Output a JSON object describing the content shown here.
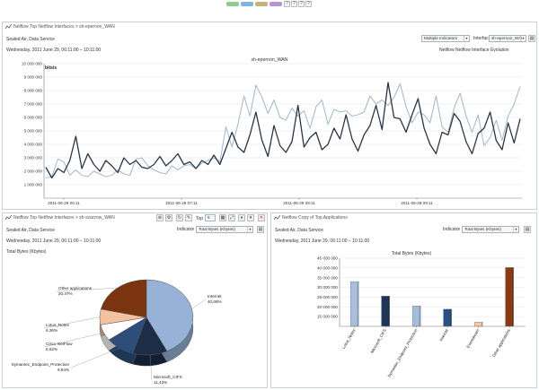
{
  "top": {
    "pills": [
      "#8ccf8c",
      "#7fb4e0",
      "#c7b27a",
      "#b891d6"
    ],
    "toolbar_icons": [
      "?",
      "?",
      "?",
      "?"
    ]
  },
  "panel1": {
    "breadcrumb": "Netflow Top Netflow Interfaces  >  sh-epernon_WAN",
    "org": "Sealed Air, Data Service",
    "period": "Wednesday, 2011 June 29, 06:11:00 – 10:11:00",
    "indicators_select": "Multiple Indicators",
    "interface_label": "Interface",
    "interface_select": "sh-epernon_WAI",
    "evolution_title": "Netflow Netflow Interface Evolution",
    "chart_title": "sh-epernon_WAN",
    "y_unit": "bits/s"
  },
  "panel2": {
    "breadcrumb": "Netflow Top Netflow Interfaces  >  sh-szarzow_WAN",
    "org": "Sealed Air, Data Service",
    "period": "Wednesday, 2011 June 29, 06:11:00 – 10:11:00",
    "indicator_label": "Indicator",
    "indicator_select": "Total Bytes (Kbytes)",
    "top_label": "Top",
    "top_value": "5",
    "section_title": "Total Bytes (Kbytes)"
  },
  "panel3": {
    "breadcrumb": "Netflow Copy of Top Applications",
    "org": "Sealed Air, Data Service",
    "period": "Wednesday, 2011 June 29, 06:11:00 – 10:11:00",
    "indicator_label": "Indicator",
    "indicator_select": "Total Bytes (Kbytes)",
    "section_title": "Total Bytes (Kbytes)"
  },
  "chart_data": [
    {
      "type": "line",
      "title": "sh-epernon_WAN",
      "ylabel": "bits/s",
      "ylim": [
        0,
        10000000
      ],
      "yticks": [
        "1 000 000",
        "2 000 000",
        "3 000 000",
        "4 000 000",
        "5 000 000",
        "6 000 000",
        "7 000 000",
        "8 000 000",
        "9 000 000",
        "10 000 000"
      ],
      "xticks": [
        "2011-06-29 06:11",
        "2011-06-29 07:11",
        "2011-06-29 08:11",
        "2011-06-29 09:11"
      ],
      "series": [
        {
          "name": "dark",
          "color": "#2b3543",
          "values": [
            2300000,
            1500000,
            2200000,
            1900000,
            2800000,
            4600000,
            2200000,
            3300000,
            2500000,
            2000000,
            2800000,
            2400000,
            1900000,
            3000000,
            2500000,
            2800000,
            2300000,
            2200000,
            2500000,
            3100000,
            2400000,
            2800000,
            3300000,
            2500000,
            2700000,
            2200000,
            2800000,
            2500000,
            3200000,
            2500000,
            3700000,
            4900000,
            3800000,
            3400000,
            4700000,
            6400000,
            4300000,
            3100000,
            5400000,
            3900000,
            3400000,
            4200000,
            6900000,
            3800000,
            4500000,
            4900000,
            3600000,
            4000000,
            5200000,
            4400000,
            6200000,
            4400000,
            3500000,
            4700000,
            5400000,
            6900000,
            5100000,
            8600000,
            6000000,
            5900000,
            4900000,
            6200000,
            7400000,
            5200000,
            4000000,
            3300000,
            4900000,
            4700000,
            6300000,
            5700000,
            4200000,
            3300000,
            4800000,
            5200000,
            6400000,
            4300000,
            3600000,
            5600000,
            4100000,
            5900000
          ]
        },
        {
          "name": "light",
          "color": "#a8bccb",
          "values": [
            1500000,
            1600000,
            2900000,
            2700000,
            1700000,
            2100000,
            1700000,
            1600000,
            2000000,
            1800000,
            1600000,
            1700000,
            2100000,
            1800000,
            1700000,
            2900000,
            3000000,
            2400000,
            2100000,
            1900000,
            1800000,
            2400000,
            2100000,
            2400000,
            2500000,
            2200000,
            2600000,
            2800000,
            3000000,
            2700000,
            5300000,
            3800000,
            5500000,
            7600000,
            6100000,
            8400000,
            7500000,
            6300000,
            7300000,
            6000000,
            5800000,
            6700000,
            6100000,
            6500000,
            5200000,
            6800000,
            7300000,
            5500000,
            6600000,
            6400000,
            6500000,
            6100000,
            6200000,
            6400000,
            7600000,
            7000000,
            7300000,
            6900000,
            7500000,
            8500000,
            6800000,
            5600000,
            6400000,
            6200000,
            5600000,
            7600000,
            5300000,
            4900000,
            6700000,
            7800000,
            6100000,
            4900000,
            6200000,
            3900000,
            4500000,
            5800000,
            4300000,
            6100000,
            7000000,
            8300000
          ]
        }
      ]
    },
    {
      "type": "pie",
      "title": "Total Bytes (Kbytes)",
      "slices": [
        {
          "label": "Internet",
          "percent_label": "40,68%",
          "value": 40.68,
          "color": "#97b2d6"
        },
        {
          "label": "Microsoft_CIFS",
          "percent_label": "11,43%",
          "value": 11.43,
          "color": "#1c2d48"
        },
        {
          "label": "Symantec_Endpoint_Protection",
          "percent_label": "9,64%",
          "value": 9.64,
          "color": "#2d4d7a"
        },
        {
          "label": "Cisco NetFlow",
          "percent_label": "6,62%",
          "value": 6.62,
          "color": "#ffffff"
        },
        {
          "label": "Lotus_Notes",
          "percent_label": "6,36%",
          "value": 6.36,
          "color": "#f4c2a0"
        },
        {
          "label": "Other applications",
          "percent_label": "20,47%",
          "value": 20.47,
          "color": "#7a3410"
        }
      ]
    },
    {
      "type": "bar",
      "title": "Total Bytes (Kbytes)",
      "ylim": [
        10000000,
        45000000
      ],
      "yticks": [
        "15 000 000",
        "20 000 000",
        "25 000 000",
        "30 000 000",
        "35 000 000",
        "40 000 000",
        "45 000 000"
      ],
      "categories": [
        "Lotus_Notes",
        "Microsoft_CIFS",
        "Symantec_Endpoint_Protection",
        "Internet",
        "Eventdream",
        "Other applications"
      ],
      "values": [
        33000000,
        25500000,
        20500000,
        18800000,
        12200000,
        40200000
      ],
      "colors": [
        "#a9c0dc",
        "#1f3556",
        "#a7bcd8",
        "#2c4f86",
        "#f6c8a4",
        "#8a3a12"
      ]
    }
  ]
}
